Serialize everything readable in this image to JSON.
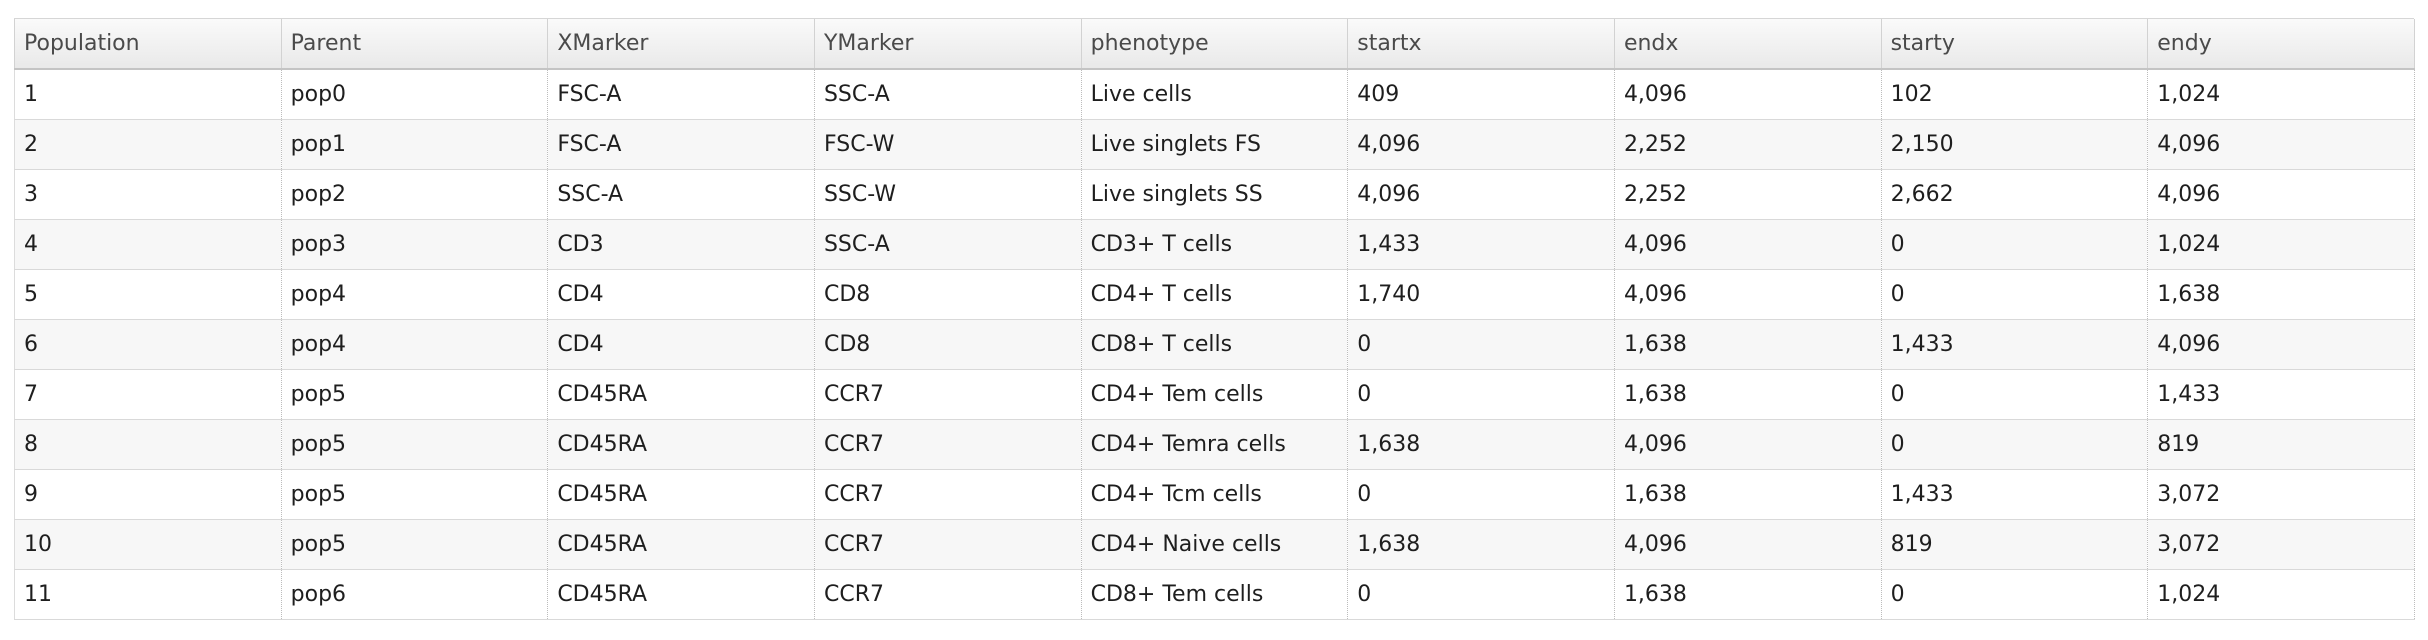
{
  "table": {
    "columns": [
      "Population",
      "Parent",
      "XMarker",
      "YMarker",
      "phenotype",
      "startx",
      "endx",
      "starty",
      "endy"
    ],
    "rows": [
      [
        "1",
        "pop0",
        "FSC-A",
        "SSC-A",
        "Live cells",
        "409",
        "4,096",
        "102",
        "1,024"
      ],
      [
        "2",
        "pop1",
        "FSC-A",
        "FSC-W",
        "Live singlets FS",
        "4,096",
        "2,252",
        "2,150",
        "4,096"
      ],
      [
        "3",
        "pop2",
        "SSC-A",
        "SSC-W",
        "Live singlets SS",
        "4,096",
        "2,252",
        "2,662",
        "4,096"
      ],
      [
        "4",
        "pop3",
        "CD3",
        "SSC-A",
        "CD3+ T cells",
        "1,433",
        "4,096",
        "0",
        "1,024"
      ],
      [
        "5",
        "pop4",
        "CD4",
        "CD8",
        "CD4+ T cells",
        "1,740",
        "4,096",
        "0",
        "1,638"
      ],
      [
        "6",
        "pop4",
        "CD4",
        "CD8",
        "CD8+ T cells",
        "0",
        "1,638",
        "1,433",
        "4,096"
      ],
      [
        "7",
        "pop5",
        "CD45RA",
        "CCR7",
        "CD4+ Tem cells",
        "0",
        "1,638",
        "0",
        "1,433"
      ],
      [
        "8",
        "pop5",
        "CD45RA",
        "CCR7",
        "CD4+ Temra cells",
        "1,638",
        "4,096",
        "0",
        "819"
      ],
      [
        "9",
        "pop5",
        "CD45RA",
        "CCR7",
        "CD4+ Tcm cells",
        "0",
        "1,638",
        "1,433",
        "3,072"
      ],
      [
        "10",
        "pop5",
        "CD45RA",
        "CCR7",
        "CD4+ Naive cells",
        "1,638",
        "4,096",
        "819",
        "3,072"
      ],
      [
        "11",
        "pop6",
        "CD45RA",
        "CCR7",
        "CD8+ Tem cells",
        "0",
        "1,638",
        "0",
        "1,024"
      ]
    ]
  }
}
